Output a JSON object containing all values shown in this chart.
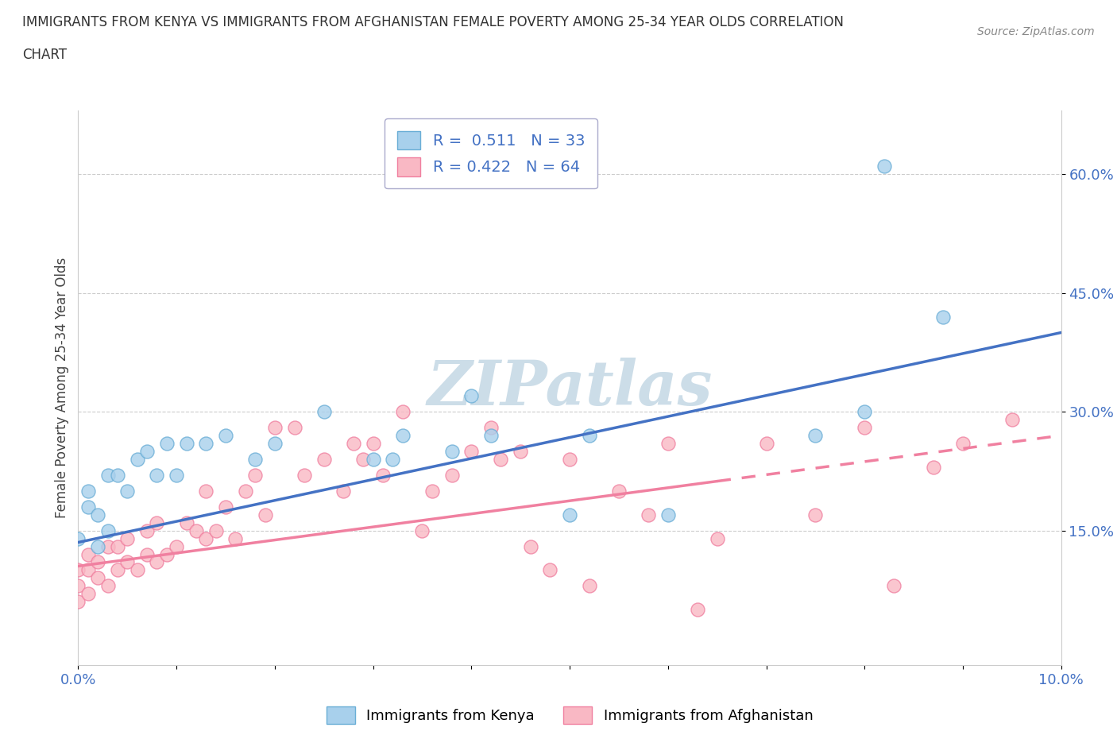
{
  "title_line1": "IMMIGRANTS FROM KENYA VS IMMIGRANTS FROM AFGHANISTAN FEMALE POVERTY AMONG 25-34 YEAR OLDS CORRELATION",
  "title_line2": "CHART",
  "source": "Source: ZipAtlas.com",
  "ylabel": "Female Poverty Among 25-34 Year Olds",
  "xlim": [
    0.0,
    0.1
  ],
  "ylim": [
    -0.02,
    0.68
  ],
  "xtick_positions": [
    0.0,
    0.01,
    0.02,
    0.03,
    0.04,
    0.05,
    0.06,
    0.07,
    0.08,
    0.09,
    0.1
  ],
  "xtick_labels": [
    "0.0%",
    "",
    "",
    "",
    "",
    "",
    "",
    "",
    "",
    "",
    "10.0%"
  ],
  "ytick_positions": [
    0.15,
    0.3,
    0.45,
    0.6
  ],
  "ytick_labels": [
    "15.0%",
    "30.0%",
    "45.0%",
    "60.0%"
  ],
  "kenya_color": "#a8d0ec",
  "kenya_edge": "#6aaed6",
  "afghanistan_color": "#f9b8c4",
  "afghanistan_edge": "#f080a0",
  "kenya_line_color": "#4472c4",
  "afghanistan_line_color": "#f080a0",
  "kenya_R": 0.511,
  "kenya_N": 33,
  "afghanistan_R": 0.422,
  "afghanistan_N": 64,
  "watermark": "ZIPatlas",
  "watermark_color": "#ccdde8",
  "legend_label_kenya": "Immigrants from Kenya",
  "legend_label_afghanistan": "Immigrants from Afghanistan",
  "kenya_x": [
    0.0,
    0.001,
    0.001,
    0.002,
    0.002,
    0.003,
    0.003,
    0.004,
    0.005,
    0.006,
    0.007,
    0.008,
    0.009,
    0.01,
    0.011,
    0.013,
    0.015,
    0.018,
    0.02,
    0.025,
    0.03,
    0.032,
    0.033,
    0.038,
    0.04,
    0.042,
    0.05,
    0.052,
    0.06,
    0.075,
    0.08,
    0.082,
    0.088
  ],
  "kenya_y": [
    0.14,
    0.18,
    0.2,
    0.13,
    0.17,
    0.15,
    0.22,
    0.22,
    0.2,
    0.24,
    0.25,
    0.22,
    0.26,
    0.22,
    0.26,
    0.26,
    0.27,
    0.24,
    0.26,
    0.3,
    0.24,
    0.24,
    0.27,
    0.25,
    0.32,
    0.27,
    0.17,
    0.27,
    0.17,
    0.27,
    0.3,
    0.61,
    0.42
  ],
  "afghanistan_x": [
    0.0,
    0.0,
    0.0,
    0.001,
    0.001,
    0.001,
    0.002,
    0.002,
    0.003,
    0.003,
    0.004,
    0.004,
    0.005,
    0.005,
    0.006,
    0.007,
    0.007,
    0.008,
    0.008,
    0.009,
    0.01,
    0.011,
    0.012,
    0.013,
    0.013,
    0.014,
    0.015,
    0.016,
    0.017,
    0.018,
    0.019,
    0.02,
    0.022,
    0.023,
    0.025,
    0.027,
    0.028,
    0.029,
    0.03,
    0.031,
    0.033,
    0.035,
    0.036,
    0.038,
    0.04,
    0.042,
    0.043,
    0.045,
    0.046,
    0.048,
    0.05,
    0.052,
    0.055,
    0.058,
    0.06,
    0.063,
    0.065,
    0.07,
    0.075,
    0.08,
    0.083,
    0.087,
    0.09,
    0.095
  ],
  "afghanistan_y": [
    0.06,
    0.08,
    0.1,
    0.07,
    0.1,
    0.12,
    0.09,
    0.11,
    0.08,
    0.13,
    0.1,
    0.13,
    0.11,
    0.14,
    0.1,
    0.12,
    0.15,
    0.11,
    0.16,
    0.12,
    0.13,
    0.16,
    0.15,
    0.14,
    0.2,
    0.15,
    0.18,
    0.14,
    0.2,
    0.22,
    0.17,
    0.28,
    0.28,
    0.22,
    0.24,
    0.2,
    0.26,
    0.24,
    0.26,
    0.22,
    0.3,
    0.15,
    0.2,
    0.22,
    0.25,
    0.28,
    0.24,
    0.25,
    0.13,
    0.1,
    0.24,
    0.08,
    0.2,
    0.17,
    0.26,
    0.05,
    0.14,
    0.26,
    0.17,
    0.28,
    0.08,
    0.23,
    0.26,
    0.29
  ],
  "kenya_trend_x": [
    0.0,
    0.1
  ],
  "kenya_trend_y": [
    0.135,
    0.4
  ],
  "afghanistan_trend_x": [
    0.0,
    0.1
  ],
  "afghanistan_trend_y": [
    0.105,
    0.27
  ]
}
